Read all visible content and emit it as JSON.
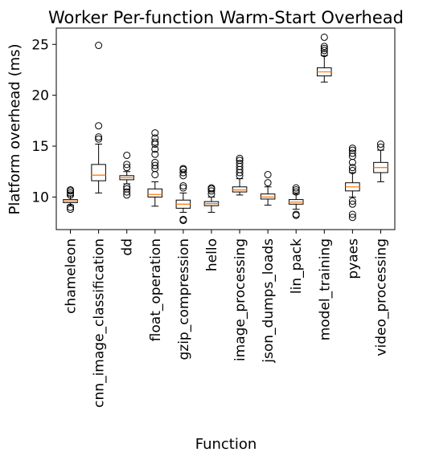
{
  "chart_data": {
    "type": "box",
    "title": "Worker Per-function Warm-Start Overhead",
    "xlabel": "Function",
    "ylabel": "Platform overhead (ms)",
    "ylim": [
      6.8,
      26.6
    ],
    "yticks": [
      10,
      15,
      20,
      25
    ],
    "grid": false,
    "colors": {
      "box": "#000000",
      "median": "#ff7f0e",
      "flier": "#000000"
    },
    "categories": [
      "chameleon",
      "cnn_image_classification",
      "dd",
      "float_operation",
      "gzip_compression",
      "hello",
      "image_processing",
      "json_dumps_loads",
      "lin_pack",
      "model_training",
      "pyaes",
      "video_processing"
    ],
    "boxes": [
      {
        "q1": 9.45,
        "median": 9.6,
        "q3": 9.75,
        "whislo": 9.2,
        "whishi": 10.1,
        "fliers": [
          8.8,
          9.0,
          10.2,
          10.4,
          10.6,
          10.7
        ]
      },
      {
        "q1": 11.6,
        "median": 12.15,
        "q3": 13.2,
        "whislo": 10.4,
        "whishi": 15.2,
        "fliers": [
          15.7,
          15.9,
          17.0,
          24.9
        ]
      },
      {
        "q1": 11.7,
        "median": 11.9,
        "q3": 12.1,
        "whislo": 11.3,
        "whishi": 12.5,
        "fliers": [
          10.2,
          10.5,
          10.8,
          11.0,
          12.9,
          13.2,
          14.1
        ]
      },
      {
        "q1": 10.0,
        "median": 10.25,
        "q3": 10.8,
        "whislo": 9.1,
        "whishi": 11.5,
        "fliers": [
          12.2,
          12.8,
          13.1,
          13.4,
          14.2,
          14.7,
          15.2,
          15.4,
          15.8,
          16.3
        ]
      },
      {
        "q1": 8.9,
        "median": 9.3,
        "q3": 9.7,
        "whislo": 8.5,
        "whishi": 10.4,
        "fliers": [
          7.7,
          7.8,
          10.9,
          11.1,
          12.1,
          12.4,
          12.7,
          12.8
        ]
      },
      {
        "q1": 9.15,
        "median": 9.35,
        "q3": 9.55,
        "whislo": 8.5,
        "whishi": 10.0,
        "fliers": [
          10.3,
          10.6,
          10.8,
          10.9
        ]
      },
      {
        "q1": 10.5,
        "median": 10.7,
        "q3": 11.0,
        "whislo": 10.2,
        "whishi": 11.8,
        "fliers": [
          12.1,
          12.4,
          12.7,
          13.0,
          13.3,
          13.6,
          13.8
        ]
      },
      {
        "q1": 9.8,
        "median": 10.0,
        "q3": 10.3,
        "whislo": 9.2,
        "whishi": 11.0,
        "fliers": [
          11.4,
          12.2
        ]
      },
      {
        "q1": 9.3,
        "median": 9.5,
        "q3": 9.75,
        "whislo": 8.8,
        "whishi": 10.3,
        "fliers": [
          8.2,
          8.3,
          10.5,
          10.7,
          10.9
        ]
      },
      {
        "q1": 21.9,
        "median": 22.3,
        "q3": 22.7,
        "whislo": 21.3,
        "whishi": 23.9,
        "fliers": [
          24.1,
          24.4,
          24.6,
          24.8,
          25.7
        ]
      },
      {
        "q1": 10.6,
        "median": 11.0,
        "q3": 11.4,
        "whislo": 10.0,
        "whishi": 12.4,
        "fliers": [
          8.0,
          8.3,
          9.3,
          9.6,
          12.6,
          12.9,
          13.4,
          14.0,
          14.3,
          14.6,
          14.8
        ]
      },
      {
        "q1": 12.4,
        "median": 12.9,
        "q3": 13.4,
        "whislo": 11.5,
        "whishi": 14.6,
        "fliers": [
          14.9,
          15.2
        ]
      }
    ]
  }
}
